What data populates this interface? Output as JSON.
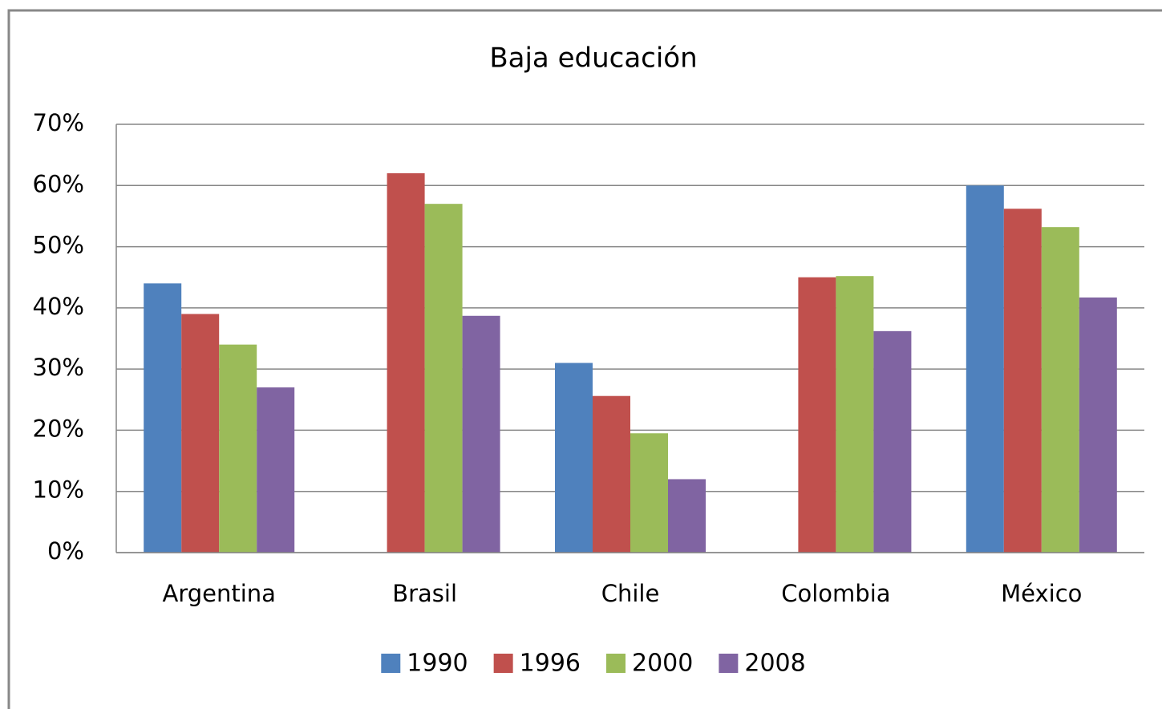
{
  "chart_data": {
    "type": "bar",
    "title": "Baja educación",
    "categories": [
      "Argentina",
      "Brasil",
      "Chile",
      "Colombia",
      "México"
    ],
    "series": [
      {
        "name": "1990",
        "color": "#4f81bd",
        "values": [
          44,
          null,
          31,
          null,
          60
        ]
      },
      {
        "name": "1996",
        "color": "#c0504d",
        "values": [
          39,
          62,
          25.6,
          45,
          56.2
        ]
      },
      {
        "name": "2000",
        "color": "#9bbb59",
        "values": [
          34,
          57,
          19.5,
          45.2,
          53.2
        ]
      },
      {
        "name": "2008",
        "color": "#8064a2",
        "values": [
          27,
          38.7,
          12,
          36.2,
          41.7
        ]
      }
    ],
    "ylim": [
      0,
      70
    ],
    "yticks": [
      {
        "value": 0,
        "label": "0%"
      },
      {
        "value": 10,
        "label": "10%"
      },
      {
        "value": 20,
        "label": "20%"
      },
      {
        "value": 30,
        "label": "30%"
      },
      {
        "value": 40,
        "label": "40%"
      },
      {
        "value": 50,
        "label": "50%"
      },
      {
        "value": 60,
        "label": "60%"
      },
      {
        "value": 70,
        "label": "70%"
      }
    ],
    "grid": true,
    "legend": "bottom"
  }
}
